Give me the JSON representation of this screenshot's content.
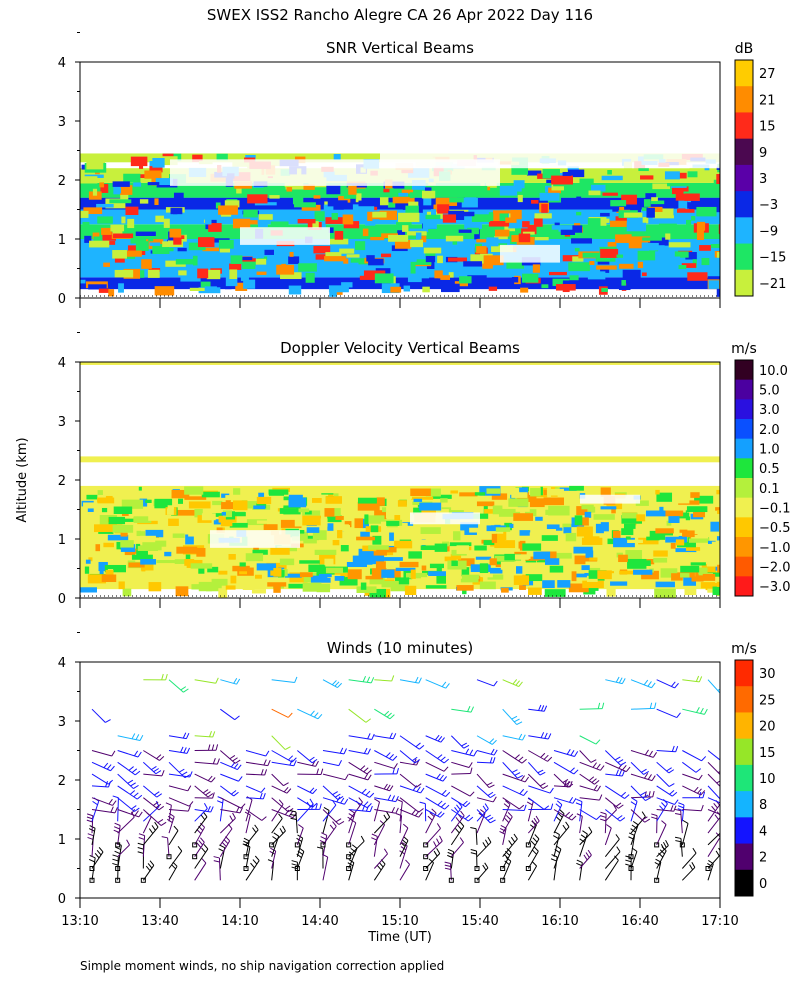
{
  "title": "SWEX ISS2 Rancho Alegre CA  26 Apr 2022 Day 116",
  "y_axis_label": "Altitude (km)",
  "x_axis_label": "Time (UT)",
  "footnote": "Simple moment winds, no ship navigation correction applied",
  "chart_data": [
    {
      "type": "heatmap",
      "title": "SNR Vertical Beams",
      "units": "dB",
      "xlabel": "",
      "ylabel": "Altitude (km)",
      "ylim": [
        0,
        4
      ],
      "y_ticks": [
        "0",
        "1",
        "2",
        "3",
        "4"
      ],
      "colorbar": {
        "labels": [
          "27",
          "21",
          "15",
          "9",
          "3",
          "−3",
          "−9",
          "−15",
          "−21"
        ],
        "colors": [
          "#ffcc00",
          "#ff8c00",
          "#ff2a1a",
          "#4b0850",
          "#5a00a8",
          "#0a28e6",
          "#1eb4ff",
          "#1ee664",
          "#c8f03c"
        ]
      },
      "bands": [
        {
          "from": 0.15,
          "to": 0.35,
          "level": "-3",
          "color": "#0a28e6"
        },
        {
          "from": 0.35,
          "to": 1.0,
          "level": "-9",
          "color": "#1eb4ff"
        },
        {
          "from": 1.0,
          "to": 1.25,
          "level": "-15",
          "color": "#1ee664"
        },
        {
          "from": 1.25,
          "to": 1.7,
          "level": "-9",
          "color": "#1eb4ff"
        },
        {
          "from": 1.5,
          "to": 1.7,
          "level": "-3",
          "color": "#0a28e6"
        },
        {
          "from": 1.7,
          "to": 1.95,
          "level": "-15",
          "color": "#1ee664"
        },
        {
          "from": 1.95,
          "to": 2.2,
          "level": "-21",
          "color": "#c8f03c"
        },
        {
          "from": 2.3,
          "to": 2.45,
          "level": "-21",
          "color": "#c8f03c"
        }
      ]
    },
    {
      "type": "heatmap",
      "title": "Doppler Velocity Vertical Beams",
      "units": "m/s",
      "ylim": [
        0,
        4
      ],
      "y_ticks": [
        "0",
        "1",
        "2",
        "3",
        "4"
      ],
      "colorbar": {
        "labels": [
          "10.0",
          "5.0",
          "3.0",
          "2.0",
          "1.0",
          "0.5",
          "0.1",
          "−0.1",
          "−0.5",
          "−1.0",
          "−2.0",
          "−3.0"
        ],
        "colors": [
          "#320022",
          "#4b00a0",
          "#2a10e0",
          "#0a50ff",
          "#14a0ff",
          "#1ee63c",
          "#b4f03c",
          "#f0f050",
          "#ffc800",
          "#ff9600",
          "#ff5a00",
          "#ff1a1a"
        ]
      },
      "bands": [
        {
          "from": 0.15,
          "to": 1.9,
          "level": "-0.1",
          "color": "#f0f050"
        },
        {
          "from": 2.3,
          "to": 2.4,
          "level": "-0.1",
          "color": "#f0f050"
        },
        {
          "from": 3.95,
          "to": 4.0,
          "level": "-0.1",
          "color": "#f0f050"
        }
      ]
    },
    {
      "type": "scatter",
      "title": "Winds (10 minutes)",
      "units": "m/s",
      "xlabel": "Time (UT)",
      "ylabel": "Altitude (km)",
      "ylim": [
        0,
        4
      ],
      "y_ticks": [
        "0",
        "1",
        "2",
        "3",
        "4"
      ],
      "x_ticks": [
        "13:10",
        "13:40",
        "14:10",
        "14:40",
        "15:10",
        "15:40",
        "16:10",
        "16:40",
        "17:10"
      ],
      "wind_altitudes_km": [
        0.3,
        0.5,
        0.7,
        0.9,
        1.1,
        1.3,
        1.5,
        1.7,
        1.9,
        2.1,
        2.3,
        2.5,
        2.75,
        3.2,
        3.7
      ],
      "colorbar": {
        "labels": [
          "30",
          "25",
          "20",
          "15",
          "10",
          "8",
          "4",
          "2",
          "0"
        ],
        "colors": [
          "#ff2a00",
          "#ff6a00",
          "#ffb400",
          "#96e628",
          "#1ee678",
          "#14b4ff",
          "#1414ff",
          "#50006e",
          "#000000"
        ]
      }
    }
  ]
}
